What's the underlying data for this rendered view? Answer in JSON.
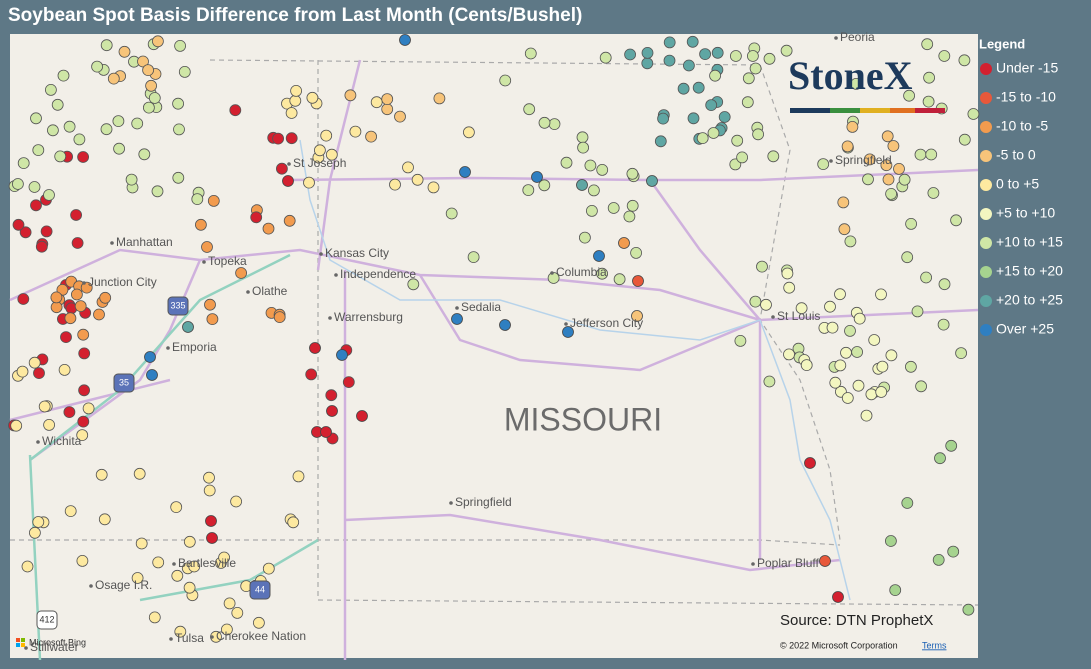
{
  "title": "Soybean Spot Basis Difference from Last Month (Cents/Bushel)",
  "legend": {
    "title": "Legend",
    "items": [
      {
        "label": "Under -15",
        "color": "#d3202f"
      },
      {
        "label": "-15 to -10",
        "color": "#e8583a"
      },
      {
        "label": "-10 to -5",
        "color": "#f29b4e"
      },
      {
        "label": "-5 to 0",
        "color": "#f7c47a"
      },
      {
        "label": "0 to +5",
        "color": "#fde9a0"
      },
      {
        "label": "+5 to +10",
        "color": "#f3f6c0"
      },
      {
        "label": "+10 to +15",
        "color": "#cfe6a6"
      },
      {
        "label": "+15 to +20",
        "color": "#a6d38f"
      },
      {
        "label": "+20 to +25",
        "color": "#5fa6a3"
      },
      {
        "label": "Over +25",
        "color": "#2f7fc1"
      }
    ]
  },
  "map": {
    "state_label": "MISSOURI",
    "cities": [
      "Peoria",
      "St Joseph",
      "Springfield",
      "Manhattan",
      "Kansas City",
      "Topeka",
      "Independence",
      "Columbia",
      "Junction City",
      "Olathe",
      "Sedalia",
      "Jefferson City",
      "St Louis",
      "Warrensburg",
      "Emporia",
      "Wichita",
      "Springfield",
      "Bartlesville",
      "Poplar Bluff",
      "Osage I.R.",
      "Tulsa",
      "Cherokee Nation",
      "Stillwater"
    ],
    "shields": [
      "335",
      "35",
      "44",
      "412"
    ]
  },
  "logo": "StoneX",
  "source": "Source: DTN ProphetX",
  "attribution": {
    "bing": "Microsoft Bing",
    "copyright": "© 2022 Microsoft Corporation",
    "terms": "Terms"
  }
}
